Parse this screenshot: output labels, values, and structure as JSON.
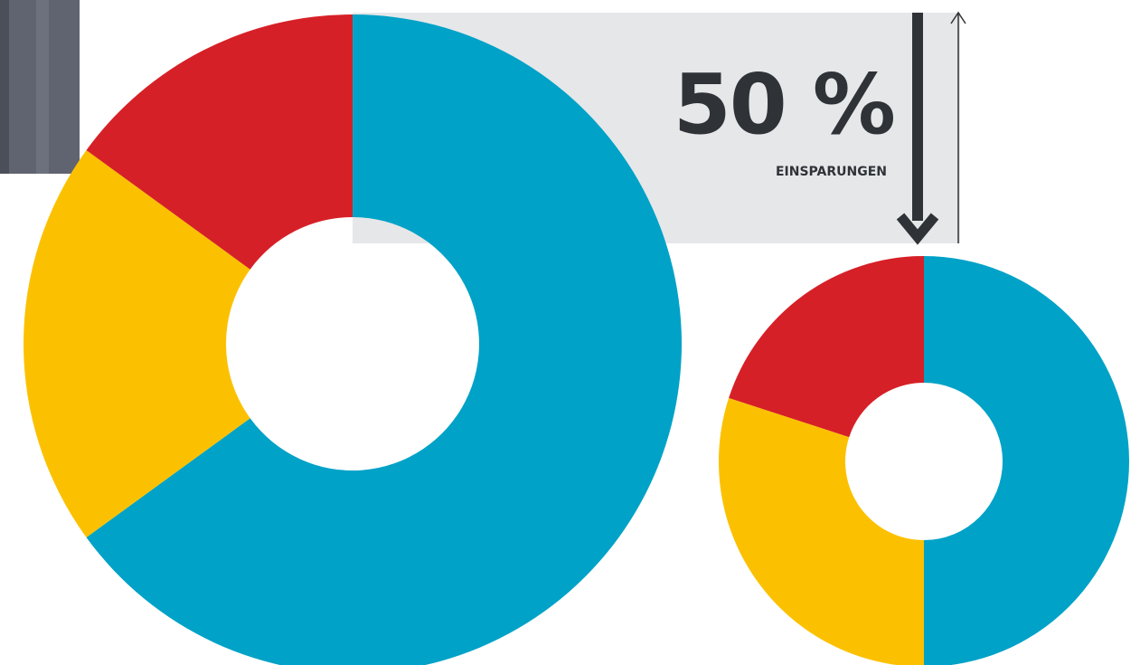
{
  "callout": {
    "value": "50 %",
    "label": "EINSPARUNGEN"
  },
  "colors": {
    "blue": "#00a2c7",
    "yellow": "#fbc100",
    "red": "#d62027",
    "text": "#2f3337",
    "panel": "#e6e7e9",
    "column": "#5f6470"
  },
  "chart_data": [
    {
      "type": "pie",
      "style": "donut",
      "slices": [
        {
          "value": 65,
          "color": "#00a2c7"
        },
        {
          "value": 20,
          "color": "#fbc100"
        },
        {
          "value": 15,
          "color": "#d62027"
        }
      ]
    },
    {
      "type": "pie",
      "style": "donut",
      "slices": [
        {
          "value": 50,
          "color": "#00a2c7"
        },
        {
          "value": 30,
          "color": "#fbc100"
        },
        {
          "value": 20,
          "color": "#d62027"
        }
      ]
    }
  ]
}
